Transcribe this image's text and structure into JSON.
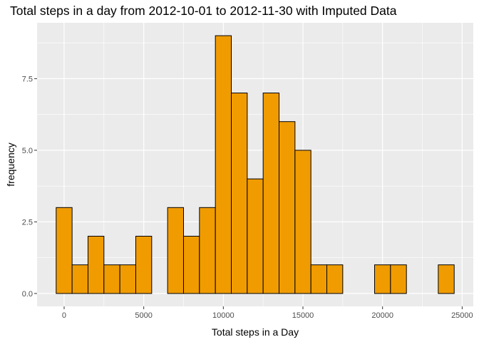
{
  "chart_data": {
    "type": "bar",
    "title": "Total steps in a day from 2012-10-01 to 2012-11-30 with Imputed Data",
    "xlabel": "Total steps in a Day",
    "ylabel": "frequency",
    "bin_width": 1000,
    "bin_centers": [
      0,
      1000,
      2000,
      3000,
      4000,
      5000,
      6000,
      7000,
      8000,
      9000,
      10000,
      11000,
      12000,
      13000,
      14000,
      15000,
      16000,
      17000,
      18000,
      19000,
      20000,
      21000,
      22000,
      23000,
      24000
    ],
    "values": [
      3,
      1,
      2,
      1,
      1,
      2,
      0,
      3,
      2,
      3,
      9,
      7,
      4,
      7,
      6,
      5,
      1,
      1,
      0,
      0,
      1,
      1,
      0,
      0,
      1
    ],
    "xlim": [
      -1700,
      25700
    ],
    "ylim": [
      -0.45,
      9.45
    ],
    "x_ticks": [
      0,
      5000,
      10000,
      15000,
      20000,
      25000
    ],
    "x_tick_labels": [
      "0",
      "5000",
      "10000",
      "15000",
      "20000",
      "25000"
    ],
    "y_ticks": [
      0,
      2.5,
      5,
      7.5
    ],
    "y_tick_labels": [
      "0.0",
      "2.5",
      "5.0",
      "7.5"
    ],
    "grid": true,
    "colors": {
      "bar_fill": "#F09C00",
      "bar_stroke": "#000000",
      "panel_bg": "#EBEBEB",
      "grid": "#FFFFFF"
    }
  }
}
